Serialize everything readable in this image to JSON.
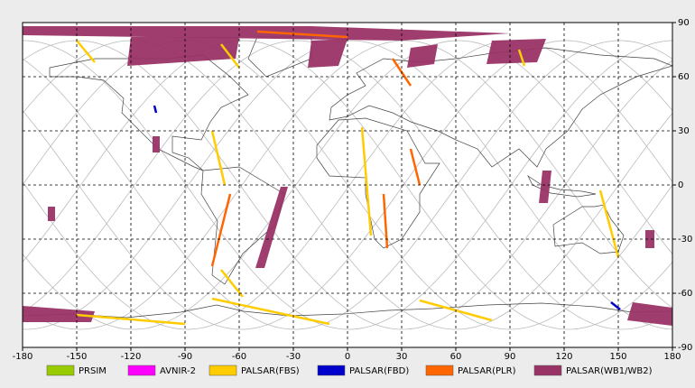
{
  "map": {
    "xlim": [
      -180,
      180
    ],
    "ylim": [
      -90,
      90
    ],
    "xticks": [
      -180,
      -150,
      -120,
      -90,
      -60,
      -30,
      0,
      30,
      60,
      90,
      120,
      150,
      180
    ],
    "yticks": [
      -90,
      -60,
      -30,
      0,
      30,
      60,
      90
    ],
    "grid": true,
    "legend": [
      {
        "name": "PRSIM",
        "color": "#99cc00"
      },
      {
        "name": "AVNIR-2",
        "color": "#ff00ff"
      },
      {
        "name": "PALSAR(FBS)",
        "color": "#ffcc00"
      },
      {
        "name": "PALSAR(FBD)",
        "color": "#0000cc"
      },
      {
        "name": "PALSAR(PLR)",
        "color": "#ff6600"
      },
      {
        "name": "PALSAR(WB1/WB2)",
        "color": "#993366"
      }
    ],
    "swaths": [
      {
        "sensor": 5,
        "polygon": [
          [
            -180,
            88
          ],
          [
            -20,
            88
          ],
          [
            90,
            84
          ],
          [
            30,
            80
          ],
          [
            -180,
            83
          ]
        ]
      },
      {
        "sensor": 5,
        "polygon": [
          [
            -120,
            82
          ],
          [
            -60,
            82
          ],
          [
            -62,
            70
          ],
          [
            -122,
            66
          ]
        ]
      },
      {
        "sensor": 5,
        "polygon": [
          [
            -20,
            80
          ],
          [
            0,
            81
          ],
          [
            -5,
            66
          ],
          [
            -22,
            65
          ]
        ]
      },
      {
        "sensor": 5,
        "polygon": [
          [
            35,
            76
          ],
          [
            50,
            78
          ],
          [
            48,
            67
          ],
          [
            33,
            65
          ]
        ]
      },
      {
        "sensor": 5,
        "polygon": [
          [
            80,
            80
          ],
          [
            110,
            81
          ],
          [
            105,
            68
          ],
          [
            77,
            67
          ]
        ]
      },
      {
        "sensor": 5,
        "polygon": [
          [
            -37,
            -1
          ],
          [
            -33,
            -1
          ],
          [
            -46,
            -46
          ],
          [
            -51,
            -46
          ]
        ]
      },
      {
        "sensor": 5,
        "polygon": [
          [
            108,
            8
          ],
          [
            113,
            8
          ],
          [
            111,
            -10
          ],
          [
            106,
            -10
          ]
        ]
      },
      {
        "sensor": 5,
        "polygon": [
          [
            -108,
            27
          ],
          [
            -104,
            27
          ],
          [
            -104,
            18
          ],
          [
            -108,
            18
          ]
        ]
      },
      {
        "sensor": 5,
        "polygon": [
          [
            -166,
            -12
          ],
          [
            -162,
            -12
          ],
          [
            -162,
            -20
          ],
          [
            -166,
            -20
          ]
        ]
      },
      {
        "sensor": 5,
        "polygon": [
          [
            -180,
            -67
          ],
          [
            -140,
            -70
          ],
          [
            -142,
            -76
          ],
          [
            -180,
            -76
          ]
        ]
      },
      {
        "sensor": 5,
        "polygon": [
          [
            158,
            -65
          ],
          [
            180,
            -68
          ],
          [
            180,
            -78
          ],
          [
            155,
            -75
          ]
        ]
      },
      {
        "sensor": 5,
        "polygon": [
          [
            165,
            -25
          ],
          [
            170,
            -25
          ],
          [
            170,
            -35
          ],
          [
            165,
            -35
          ]
        ]
      }
    ],
    "tracks": [
      {
        "sensor": 2,
        "points": [
          [
            -150,
            80
          ],
          [
            -140,
            68
          ]
        ]
      },
      {
        "sensor": 2,
        "points": [
          [
            -70,
            78
          ],
          [
            -60,
            65
          ]
        ]
      },
      {
        "sensor": 2,
        "points": [
          [
            8,
            32
          ],
          [
            13,
            -28
          ]
        ]
      },
      {
        "sensor": 2,
        "points": [
          [
            -75,
            -63
          ],
          [
            -10,
            -77
          ]
        ]
      },
      {
        "sensor": 2,
        "points": [
          [
            40,
            -64
          ],
          [
            80,
            -75
          ]
        ]
      },
      {
        "sensor": 2,
        "points": [
          [
            -150,
            -72
          ],
          [
            -90,
            -77
          ]
        ]
      },
      {
        "sensor": 2,
        "points": [
          [
            140,
            -3
          ],
          [
            150,
            -40
          ]
        ]
      },
      {
        "sensor": 2,
        "points": [
          [
            -75,
            30
          ],
          [
            -68,
            0
          ]
        ]
      },
      {
        "sensor": 2,
        "points": [
          [
            95,
            75
          ],
          [
            98,
            66
          ]
        ]
      },
      {
        "sensor": 2,
        "points": [
          [
            -70,
            -47
          ],
          [
            -58,
            -62
          ]
        ]
      },
      {
        "sensor": 4,
        "points": [
          [
            20,
            -5
          ],
          [
            22,
            -35
          ]
        ]
      },
      {
        "sensor": 4,
        "points": [
          [
            -65,
            -5
          ],
          [
            -75,
            -45
          ]
        ]
      },
      {
        "sensor": 4,
        "points": [
          [
            25,
            70
          ],
          [
            35,
            55
          ]
        ]
      },
      {
        "sensor": 4,
        "points": [
          [
            -50,
            85
          ],
          [
            0,
            82
          ]
        ]
      },
      {
        "sensor": 4,
        "points": [
          [
            35,
            20
          ],
          [
            40,
            0
          ]
        ]
      },
      {
        "sensor": 3,
        "points": [
          [
            146,
            -65
          ],
          [
            151,
            -69
          ]
        ]
      },
      {
        "sensor": 3,
        "points": [
          [
            -107,
            44
          ],
          [
            -106,
            40
          ]
        ]
      }
    ]
  }
}
